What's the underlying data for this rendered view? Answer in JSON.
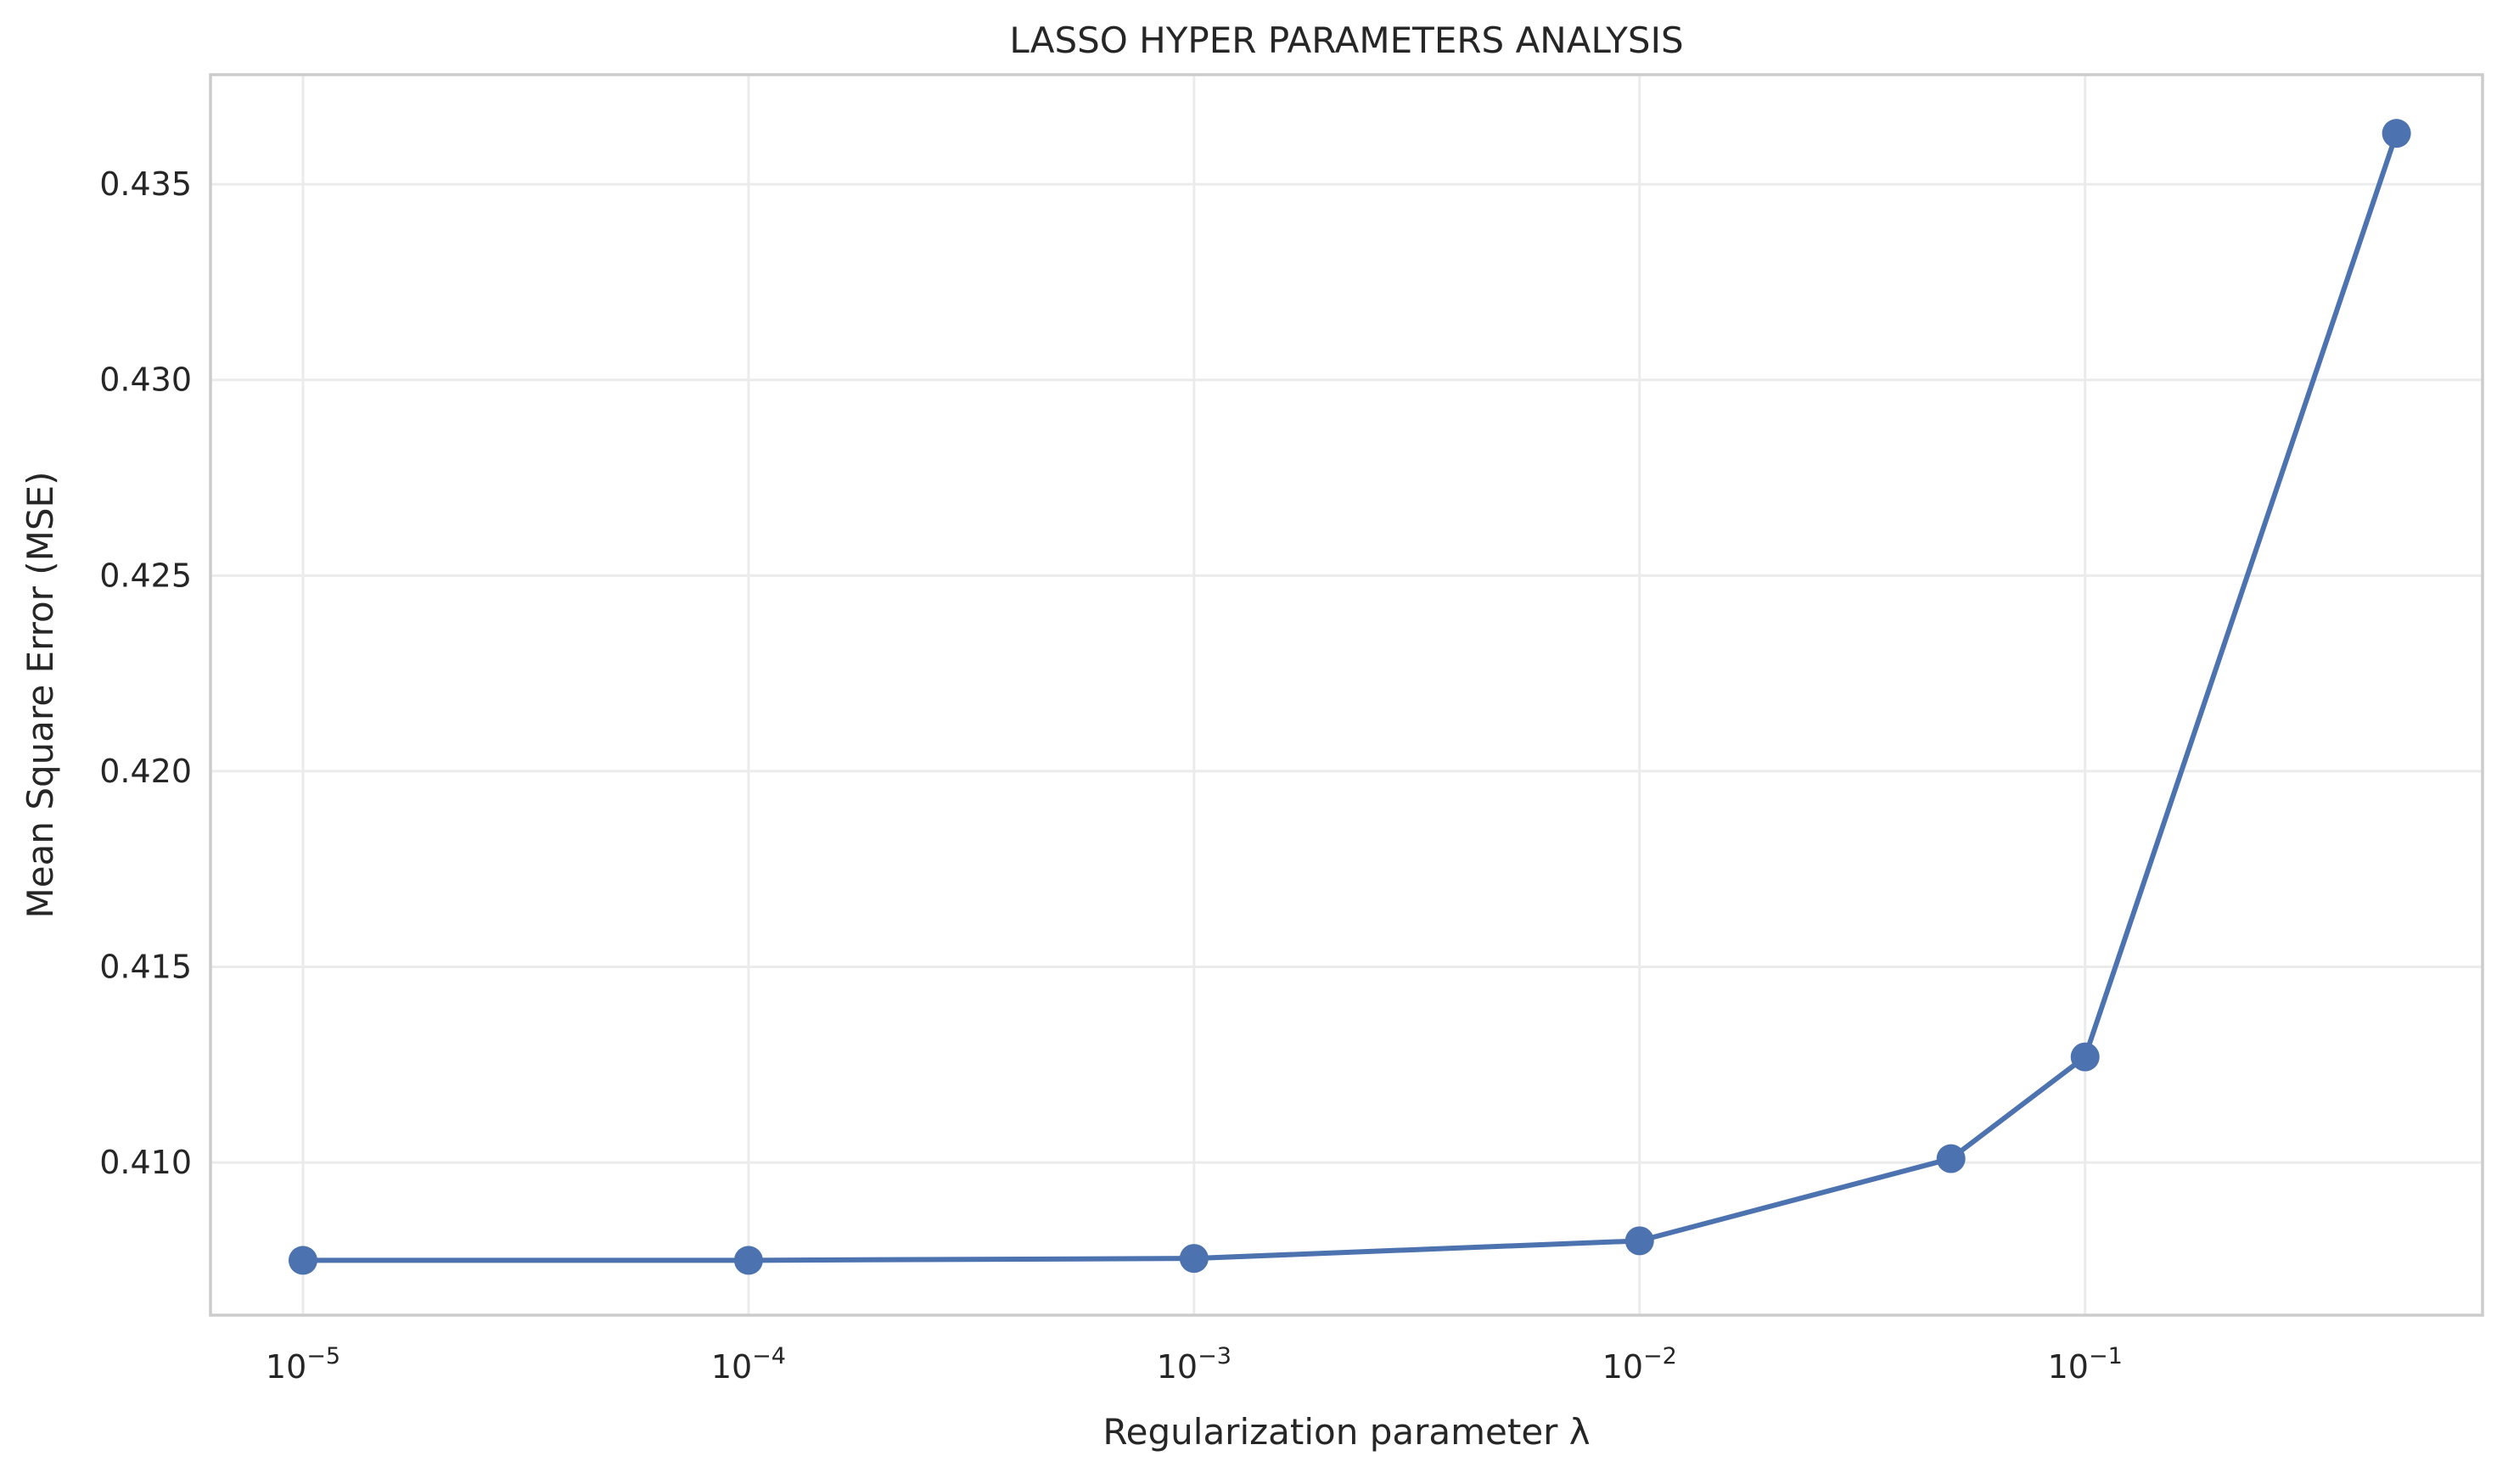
{
  "chart_data": {
    "type": "line",
    "title": "LASSO HYPER PARAMETERS ANALYSIS",
    "xlabel": "Regularization parameter λ",
    "ylabel": "Mean Square Error (MSE)",
    "x_scale": "log",
    "xlim": [
      6.2e-06,
      0.78
    ],
    "ylim": [
      0.4061,
      0.4378
    ],
    "x_ticks": [
      {
        "value": 1e-05,
        "base": "10",
        "exp": "−5"
      },
      {
        "value": 0.0001,
        "base": "10",
        "exp": "−4"
      },
      {
        "value": 0.001,
        "base": "10",
        "exp": "−3"
      },
      {
        "value": 0.01,
        "base": "10",
        "exp": "−2"
      },
      {
        "value": 0.1,
        "base": "10",
        "exp": "−1"
      }
    ],
    "y_ticks": [
      {
        "value": 0.41,
        "label": "0.410"
      },
      {
        "value": 0.415,
        "label": "0.415"
      },
      {
        "value": 0.42,
        "label": "0.420"
      },
      {
        "value": 0.425,
        "label": "0.425"
      },
      {
        "value": 0.43,
        "label": "0.430"
      },
      {
        "value": 0.435,
        "label": "0.435"
      }
    ],
    "grid": true,
    "legend": "none",
    "series": [
      {
        "color": "#4c72b0",
        "x": [
          1e-05,
          0.0001,
          0.001,
          0.01,
          0.05,
          0.1,
          0.5
        ],
        "y": [
          0.4075,
          0.4075,
          0.40755,
          0.408,
          0.4101,
          0.4127,
          0.4363
        ]
      }
    ]
  }
}
